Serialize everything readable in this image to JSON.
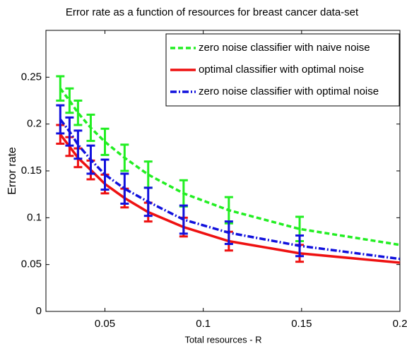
{
  "chart_data": {
    "type": "line",
    "title": "Error rate as a function of resources for breast cancer data-set",
    "xlabel": "Total resources - R",
    "ylabel": "Error rate",
    "x": [
      0.0273,
      0.032,
      0.0363,
      0.0428,
      0.05,
      0.06,
      0.072,
      0.09,
      0.113,
      0.149,
      0.2
    ],
    "series": [
      {
        "name": "zero noise classifier with naive noise",
        "color": "#22ee22",
        "dash": "dashed",
        "values": [
          0.238,
          0.225,
          0.212,
          0.196,
          0.181,
          0.164,
          0.146,
          0.126,
          0.108,
          0.088,
          0.071
        ],
        "errors": [
          0.013,
          0.013,
          0.013,
          0.014,
          0.014,
          0.014,
          0.014,
          0.014,
          0.014,
          0.013,
          null
        ]
      },
      {
        "name": "optimal classifier with optimal noise",
        "color": "#ee1111",
        "dash": "solid",
        "values": [
          0.189,
          0.176,
          0.164,
          0.151,
          0.136,
          0.121,
          0.106,
          0.09,
          0.075,
          0.062,
          0.052
        ],
        "errors": [
          0.01,
          0.01,
          0.01,
          0.01,
          0.01,
          0.01,
          0.01,
          0.01,
          0.01,
          0.009,
          null
        ]
      },
      {
        "name": "zero noise classifier with optimal noise",
        "color": "#1111dd",
        "dash": "dashdot",
        "values": [
          0.205,
          0.192,
          0.178,
          0.162,
          0.146,
          0.131,
          0.117,
          0.098,
          0.084,
          0.07,
          0.056
        ],
        "errors": [
          0.015,
          0.015,
          0.015,
          0.015,
          0.016,
          0.016,
          0.015,
          0.015,
          0.012,
          0.011,
          null
        ]
      }
    ],
    "xlim": [
      0.02,
      0.2
    ],
    "xticks": [
      0.05,
      0.1,
      0.15,
      0.2
    ],
    "ylim": [
      0,
      0.3
    ],
    "yticks": [
      0,
      0.05,
      0.1,
      0.15,
      0.2,
      0.25
    ],
    "grid": false,
    "legend": "top-right"
  }
}
